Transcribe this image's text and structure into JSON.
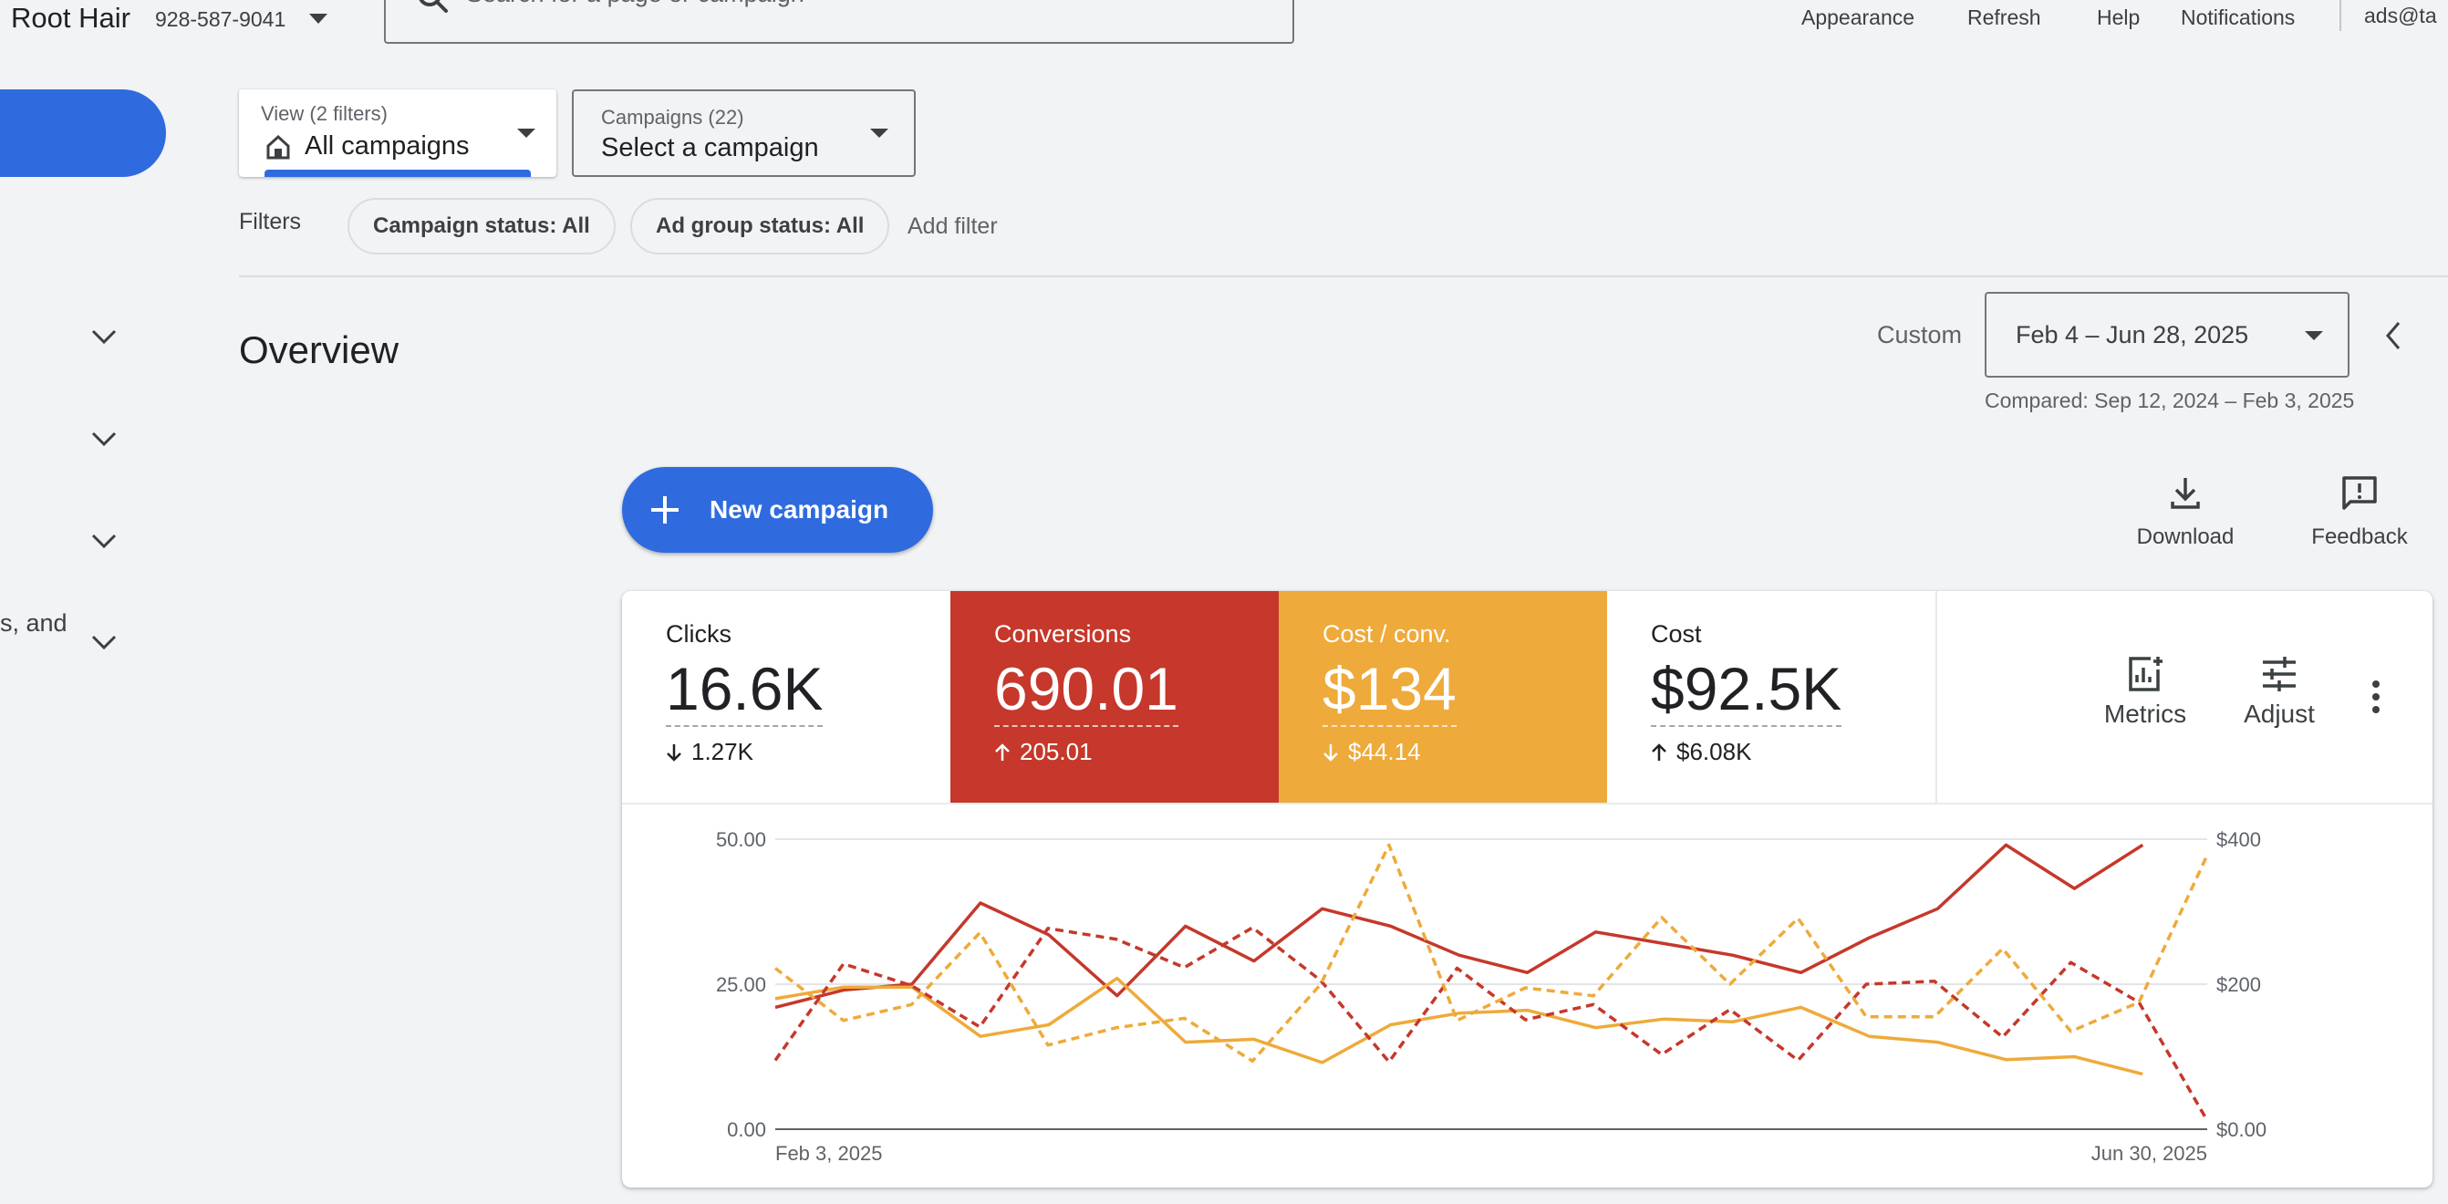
{
  "header": {
    "account_name": "Root Hair",
    "account_id": "928-587-9041",
    "search_placeholder": "Search for a page or campaign",
    "links": [
      "Appearance",
      "Refresh",
      "Help",
      "Notifications"
    ],
    "user_email": "ads@ta"
  },
  "sidebar": {
    "partial_text": "s, and"
  },
  "view_select": {
    "caption": "View (2 filters)",
    "value": "All campaigns"
  },
  "campaign_select": {
    "caption": "Campaigns (22)",
    "value": "Select a campaign"
  },
  "filters": {
    "label": "Filters",
    "chips": [
      "Campaign status: All",
      "Ad group status: All"
    ],
    "add_filter": "Add filter"
  },
  "overview": {
    "title": "Overview",
    "range_label": "Custom",
    "date_range": "Feb 4 – Jun 28, 2025",
    "compared": "Compared: Sep 12, 2024 – Feb 3, 2025"
  },
  "actions": {
    "new_campaign": "New campaign",
    "download": "Download",
    "feedback": "Feedback"
  },
  "metrics": [
    {
      "label": "Clicks",
      "value": "16.6K",
      "delta": "1.27K",
      "direction": "down",
      "color": "#ffffff"
    },
    {
      "label": "Conversions",
      "value": "690.01",
      "delta": "205.01",
      "direction": "up",
      "color": "#c5382b"
    },
    {
      "label": "Cost / conv.",
      "value": "$134",
      "delta": "$44.14",
      "direction": "down",
      "color": "#eeaa3a"
    },
    {
      "label": "Cost",
      "value": "$92.5K",
      "delta": "$6.08K",
      "direction": "up",
      "color": "#ffffff"
    }
  ],
  "metric_tools": {
    "metrics": "Metrics",
    "adjust": "Adjust"
  },
  "chart_data": {
    "type": "line",
    "x_start": "Feb 3, 2025",
    "x_end": "Jun 30, 2025",
    "y_left_ticks": [
      "0.00",
      "25.00",
      "50.00"
    ],
    "y_right_ticks": [
      "$0.00",
      "$200",
      "$400"
    ],
    "ylim_left": [
      0,
      50
    ],
    "ylim_right": [
      0,
      400
    ],
    "grid": true,
    "series": [
      {
        "color": "#c5382b",
        "dashed": false,
        "axis": "left",
        "values": [
          21,
          24,
          25,
          39,
          33.5,
          23,
          35,
          29,
          38,
          35,
          30,
          27,
          34,
          32,
          30,
          27,
          33,
          38,
          49,
          41.5,
          49
        ]
      },
      {
        "color": "#eeaa3a",
        "dashed": false,
        "axis": "left",
        "values": [
          22.5,
          24.5,
          24.5,
          16,
          18,
          26,
          15,
          15.5,
          11.5,
          18,
          20,
          20.5,
          17.5,
          19,
          18.5,
          21,
          16,
          15,
          12,
          12.5,
          9.5
        ]
      },
      {
        "color": "#c5382b",
        "dashed": true,
        "axis": "right",
        "values": [
          95,
          228,
          198,
          141,
          277,
          262,
          223,
          278,
          205,
          93,
          222,
          151,
          172,
          103,
          165,
          95,
          200,
          204,
          127,
          230,
          175,
          12
        ]
      },
      {
        "color": "#eeaa3a",
        "dashed": true,
        "axis": "right",
        "values": [
          222,
          150,
          172,
          271,
          116,
          140,
          153,
          94,
          200,
          392,
          150,
          195,
          184,
          292,
          200,
          291,
          155,
          155,
          249,
          135,
          175,
          378
        ]
      }
    ]
  }
}
